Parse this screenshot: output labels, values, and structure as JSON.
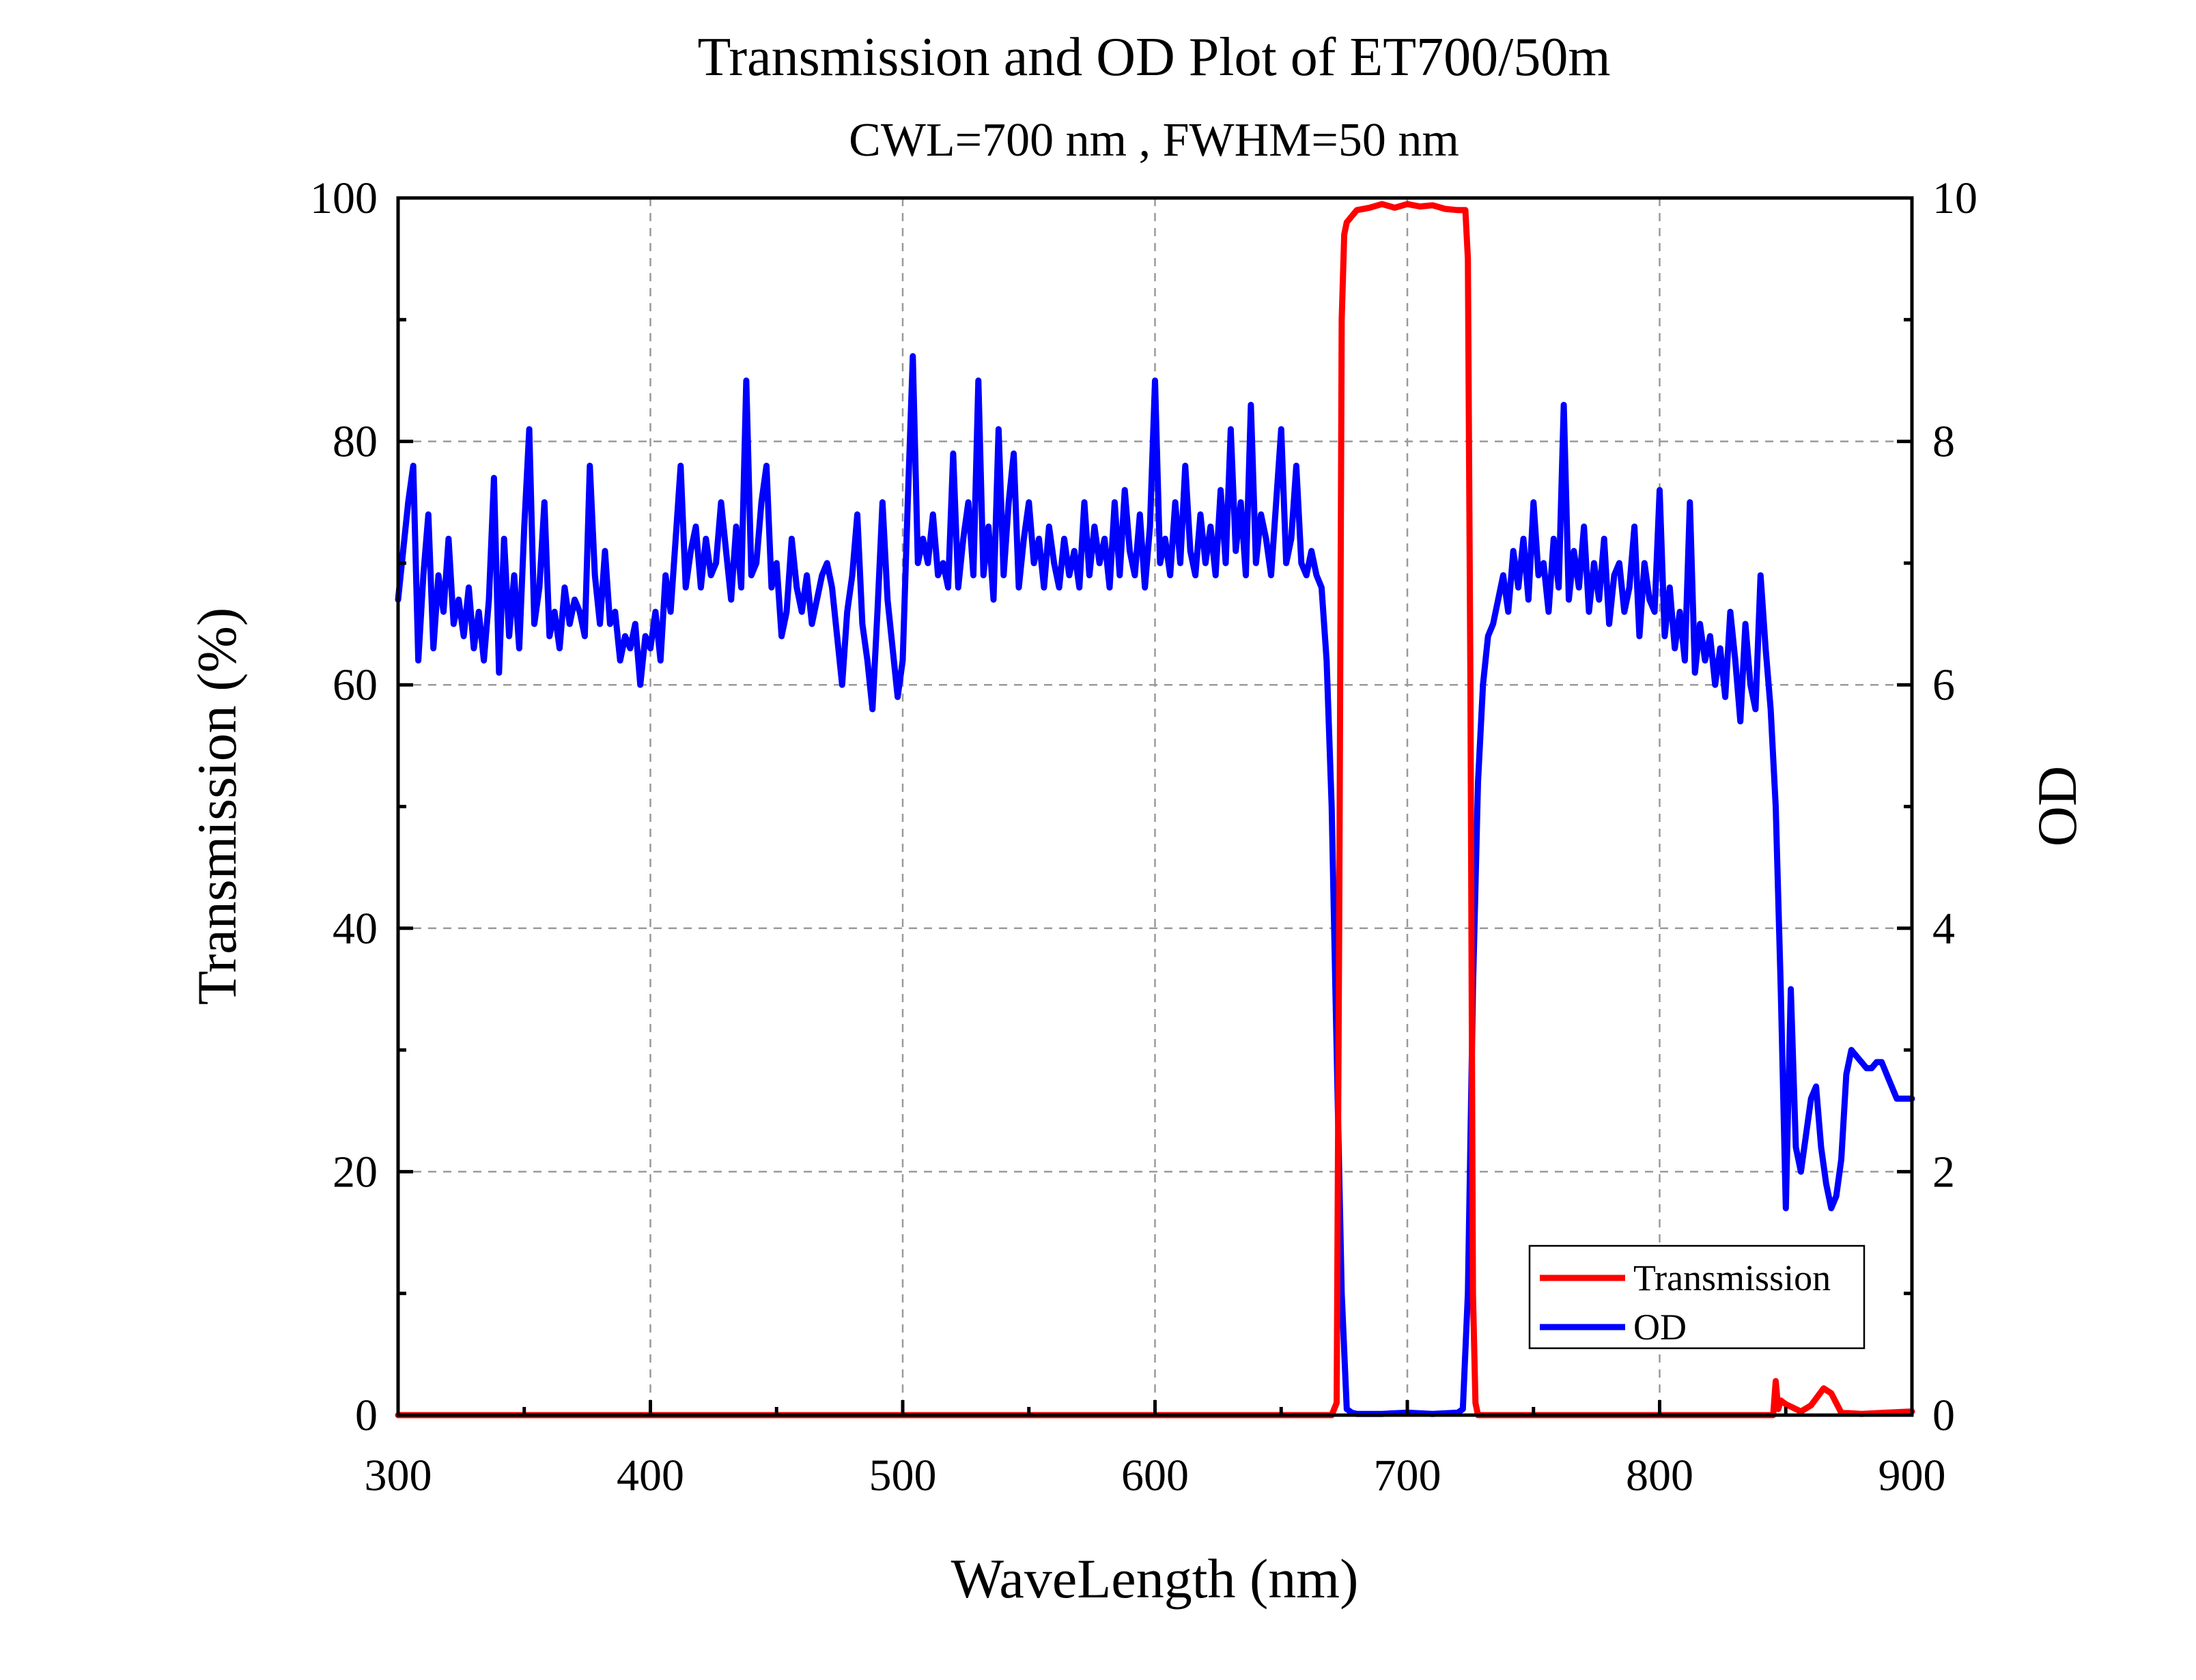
{
  "chart_data": {
    "type": "line",
    "title": "Transmission and OD Plot of ET700/50m",
    "subtitle": "CWL=700 nm , FWHM=50 nm",
    "xlabel": "WaveLength (nm)",
    "ylabel": "Transmission (%)",
    "y2label": "OD",
    "xlim": [
      300,
      900
    ],
    "ylim": [
      0,
      100
    ],
    "y2lim": [
      0,
      10
    ],
    "xticks": [
      300,
      400,
      500,
      600,
      700,
      800,
      900
    ],
    "yticks": [
      0,
      20,
      40,
      60,
      80,
      100
    ],
    "y2ticks": [
      0,
      2,
      4,
      6,
      8,
      10
    ],
    "grid": true,
    "legend": {
      "position": "bottom-right"
    },
    "colors": {
      "transmission": "#ff0000",
      "od": "#0000ff"
    },
    "series": [
      {
        "name": "Transmission",
        "axis": "left",
        "color": "#ff0000",
        "x": [
          300,
          670,
          672,
          673,
          674,
          675,
          676,
          678,
          680,
          685,
          690,
          695,
          700,
          705,
          710,
          715,
          720,
          723,
          724,
          725,
          726,
          727,
          728,
          845,
          846,
          847,
          848,
          850,
          853,
          856,
          860,
          865,
          868,
          872,
          880,
          890,
          900
        ],
        "y": [
          0,
          0,
          1,
          40,
          90,
          97,
          98,
          98.5,
          99,
          99.2,
          99.5,
          99.2,
          99.5,
          99.3,
          99.4,
          99.1,
          99.0,
          99.0,
          95,
          60,
          10,
          1,
          0,
          0,
          2.8,
          0.5,
          1.2,
          0.9,
          0.6,
          0.3,
          0.8,
          2.2,
          1.8,
          0.2,
          0.1,
          0.2,
          0.3
        ]
      },
      {
        "name": "OD",
        "axis": "right",
        "color": "#0000ff",
        "x": [
          300,
          302,
          304,
          306,
          308,
          310,
          312,
          314,
          316,
          318,
          320,
          322,
          324,
          326,
          328,
          330,
          332,
          334,
          336,
          338,
          340,
          342,
          344,
          346,
          348,
          350,
          352,
          354,
          356,
          358,
          360,
          362,
          364,
          366,
          368,
          370,
          372,
          374,
          376,
          378,
          380,
          382,
          384,
          386,
          388,
          390,
          392,
          394,
          396,
          398,
          400,
          402,
          404,
          406,
          408,
          410,
          412,
          414,
          416,
          418,
          420,
          422,
          424,
          426,
          428,
          430,
          432,
          434,
          436,
          438,
          440,
          442,
          444,
          446,
          448,
          450,
          452,
          454,
          456,
          458,
          460,
          462,
          464,
          466,
          468,
          470,
          472,
          474,
          476,
          478,
          480,
          482,
          484,
          486,
          488,
          490,
          492,
          494,
          496,
          498,
          500,
          502,
          504,
          506,
          508,
          510,
          512,
          514,
          516,
          518,
          520,
          522,
          524,
          526,
          528,
          530,
          532,
          534,
          536,
          538,
          540,
          542,
          544,
          546,
          548,
          550,
          552,
          554,
          556,
          558,
          560,
          562,
          564,
          566,
          568,
          570,
          572,
          574,
          576,
          578,
          580,
          582,
          584,
          586,
          588,
          590,
          592,
          594,
          596,
          598,
          600,
          602,
          604,
          606,
          608,
          610,
          612,
          614,
          616,
          618,
          620,
          622,
          624,
          626,
          628,
          630,
          632,
          634,
          636,
          638,
          640,
          642,
          644,
          646,
          648,
          650,
          652,
          654,
          656,
          658,
          660,
          662,
          664,
          666,
          668,
          670,
          672,
          674,
          676,
          678,
          680,
          690,
          700,
          710,
          720,
          722,
          724,
          726,
          728,
          730,
          732,
          734,
          736,
          738,
          740,
          742,
          744,
          746,
          748,
          750,
          752,
          754,
          756,
          758,
          760,
          762,
          764,
          766,
          768,
          770,
          772,
          774,
          776,
          778,
          780,
          782,
          784,
          786,
          788,
          790,
          792,
          794,
          796,
          798,
          800,
          802,
          804,
          806,
          808,
          810,
          812,
          814,
          816,
          818,
          820,
          822,
          824,
          826,
          828,
          830,
          832,
          834,
          836,
          838,
          840,
          842,
          844,
          846,
          848,
          850,
          852,
          854,
          856,
          858,
          860,
          862,
          864,
          866,
          868,
          870,
          872,
          874,
          876,
          878,
          880,
          882,
          884,
          886,
          888,
          890,
          892,
          894,
          896,
          898,
          900
        ],
        "y": [
          6.7,
          7.1,
          7.5,
          7.8,
          6.2,
          6.9,
          7.4,
          6.3,
          6.9,
          6.6,
          7.2,
          6.5,
          6.7,
          6.4,
          6.8,
          6.3,
          6.6,
          6.2,
          6.7,
          7.7,
          6.1,
          7.2,
          6.4,
          6.9,
          6.3,
          7.3,
          8.1,
          6.5,
          6.8,
          7.5,
          6.4,
          6.6,
          6.3,
          6.8,
          6.5,
          6.7,
          6.6,
          6.4,
          7.8,
          6.9,
          6.5,
          7.1,
          6.5,
          6.6,
          6.2,
          6.4,
          6.3,
          6.5,
          6.0,
          6.4,
          6.3,
          6.6,
          6.2,
          6.9,
          6.6,
          7.2,
          7.8,
          6.8,
          7.1,
          7.3,
          6.8,
          7.2,
          6.9,
          7.0,
          7.5,
          7.1,
          6.7,
          7.3,
          6.8,
          8.5,
          6.9,
          7.0,
          7.5,
          7.8,
          6.8,
          7.0,
          6.4,
          6.6,
          7.2,
          6.8,
          6.6,
          6.9,
          6.5,
          6.7,
          6.9,
          7.0,
          6.8,
          6.4,
          6.0,
          6.6,
          6.9,
          7.4,
          6.5,
          6.2,
          5.8,
          6.6,
          7.5,
          6.7,
          6.3,
          5.9,
          6.2,
          7.5,
          8.7,
          7.0,
          7.2,
          7.0,
          7.4,
          6.9,
          7.0,
          6.8,
          7.9,
          6.8,
          7.2,
          7.5,
          6.9,
          8.5,
          6.9,
          7.3,
          6.7,
          8.1,
          6.9,
          7.5,
          7.9,
          6.8,
          7.2,
          7.5,
          7.0,
          7.2,
          6.8,
          7.3,
          7.0,
          6.8,
          7.2,
          6.9,
          7.1,
          6.8,
          7.5,
          6.9,
          7.3,
          7.0,
          7.2,
          6.8,
          7.5,
          6.9,
          7.6,
          7.1,
          6.9,
          7.4,
          6.8,
          7.3,
          8.5,
          7.0,
          7.2,
          6.9,
          7.5,
          7.0,
          7.8,
          7.1,
          6.9,
          7.4,
          7.0,
          7.3,
          6.9,
          7.6,
          7.0,
          8.1,
          7.1,
          7.5,
          6.9,
          8.3,
          7.0,
          7.4,
          7.2,
          6.9,
          7.5,
          8.1,
          7.0,
          7.2,
          7.8,
          7.0,
          6.9,
          7.1,
          6.9,
          6.8,
          6.2,
          5.0,
          3.0,
          1.0,
          0.05,
          0.02,
          0.01,
          0.01,
          0.02,
          0.01,
          0.02,
          0.05,
          1.0,
          3.5,
          5.2,
          6.0,
          6.4,
          6.5,
          6.7,
          6.9,
          6.6,
          7.1,
          6.8,
          7.2,
          6.7,
          7.5,
          6.9,
          7.0,
          6.6,
          7.2,
          6.8,
          8.3,
          6.7,
          7.1,
          6.8,
          7.3,
          6.6,
          7.0,
          6.7,
          7.2,
          6.5,
          6.9,
          7.0,
          6.6,
          6.8,
          7.3,
          6.4,
          7.0,
          6.7,
          6.6,
          7.6,
          6.4,
          6.8,
          6.3,
          6.6,
          6.2,
          7.5,
          6.1,
          6.5,
          6.2,
          6.4,
          6.0,
          6.3,
          5.9,
          6.6,
          6.2,
          5.7,
          6.5,
          6.0,
          5.8,
          6.9,
          6.3,
          5.8,
          5.0,
          3.5,
          1.7,
          3.5,
          2.2,
          2.0,
          2.3,
          2.6,
          2.7,
          2.2,
          1.9,
          1.7,
          1.8,
          2.1,
          2.8,
          3.0,
          2.95,
          2.9,
          2.85,
          2.85,
          2.9,
          2.9,
          2.8,
          2.7,
          2.6,
          2.6,
          2.6,
          2.6
        ]
      }
    ]
  }
}
